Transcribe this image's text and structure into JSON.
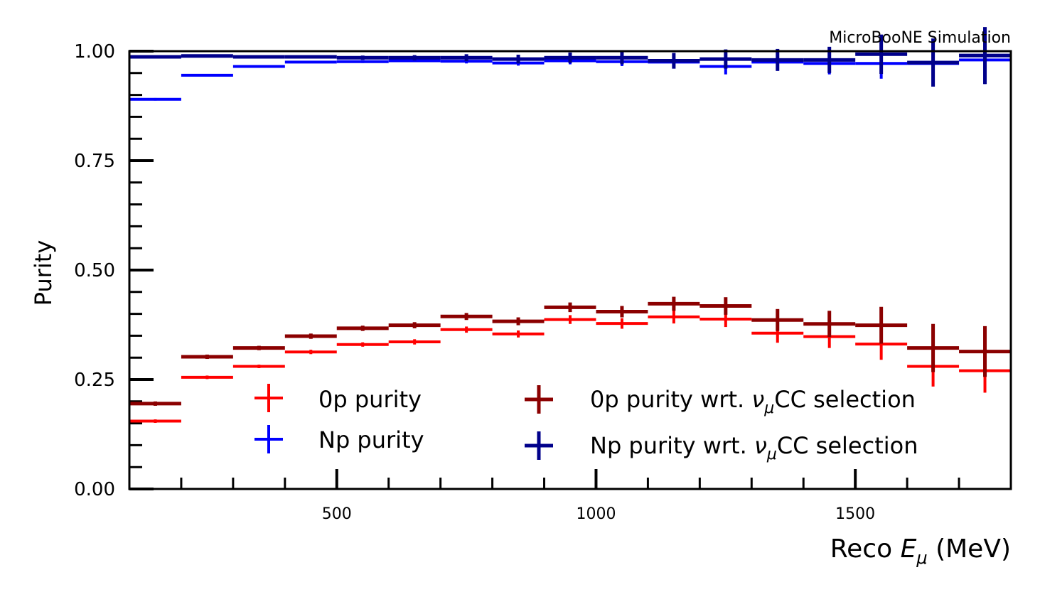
{
  "chart_data": {
    "type": "line",
    "plot_style": "step histogram with error bars",
    "title": "MicroBooNE Simulation",
    "xlabel": "Reco",
    "xlabel_symbol": "E",
    "xlabel_subscript": "μ",
    "xlabel_units": "(MeV)",
    "ylabel": "Purity",
    "xlim": [
      100,
      1800
    ],
    "ylim": [
      0.0,
      1.0
    ],
    "yticks": [
      "0.00",
      "0.25",
      "0.50",
      "0.75",
      "1.00"
    ],
    "xticks": [
      "500",
      "1000",
      "1500"
    ],
    "bin_edges": [
      100,
      200,
      300,
      400,
      500,
      600,
      700,
      800,
      900,
      1000,
      1100,
      1200,
      1300,
      1400,
      1500,
      1600,
      1700,
      1800
    ],
    "series": [
      {
        "name": "0p purity",
        "color": "#ff0000",
        "values": [
          0.155,
          0.255,
          0.28,
          0.313,
          0.33,
          0.336,
          0.364,
          0.354,
          0.387,
          0.378,
          0.393,
          0.388,
          0.356,
          0.348,
          0.331,
          0.28,
          0.27
        ],
        "errors": [
          0.004,
          0.004,
          0.004,
          0.005,
          0.005,
          0.006,
          0.007,
          0.008,
          0.01,
          0.012,
          0.015,
          0.018,
          0.022,
          0.026,
          0.036,
          0.046,
          0.05
        ]
      },
      {
        "name": "Np purity",
        "color": "#0000ff",
        "values": [
          0.89,
          0.945,
          0.965,
          0.975,
          0.976,
          0.978,
          0.977,
          0.973,
          0.978,
          0.976,
          0.975,
          0.965,
          0.975,
          0.972,
          0.972,
          0.972,
          0.98
        ],
        "errors": [
          0.003,
          0.002,
          0.002,
          0.002,
          0.003,
          0.003,
          0.005,
          0.006,
          0.008,
          0.01,
          0.014,
          0.018,
          0.02,
          0.025,
          0.035,
          0.045,
          0.055
        ]
      },
      {
        "name": "0p purity wrt.",
        "name_symbol": "ν",
        "name_subscript": "μ",
        "name_suffix": "CC selection",
        "color": "#8b0000",
        "values": [
          0.195,
          0.302,
          0.322,
          0.349,
          0.367,
          0.374,
          0.394,
          0.383,
          0.415,
          0.405,
          0.423,
          0.418,
          0.386,
          0.377,
          0.374,
          0.322,
          0.314
        ],
        "errors": [
          0.005,
          0.005,
          0.005,
          0.006,
          0.006,
          0.007,
          0.008,
          0.009,
          0.011,
          0.013,
          0.016,
          0.02,
          0.025,
          0.03,
          0.042,
          0.055,
          0.058
        ]
      },
      {
        "name": "Np purity wrt.",
        "name_symbol": "ν",
        "name_subscript": "μ",
        "name_suffix": "CC selection",
        "color": "#00008b",
        "values": [
          0.987,
          0.989,
          0.987,
          0.987,
          0.985,
          0.985,
          0.985,
          0.982,
          0.985,
          0.985,
          0.978,
          0.982,
          0.98,
          0.98,
          0.993,
          0.974,
          0.99
        ],
        "errors": [
          0.003,
          0.003,
          0.003,
          0.004,
          0.005,
          0.006,
          0.008,
          0.01,
          0.012,
          0.015,
          0.018,
          0.022,
          0.025,
          0.03,
          0.045,
          0.055,
          0.065
        ]
      }
    ],
    "legend": {
      "location": "lower center",
      "columns": 2
    }
  }
}
